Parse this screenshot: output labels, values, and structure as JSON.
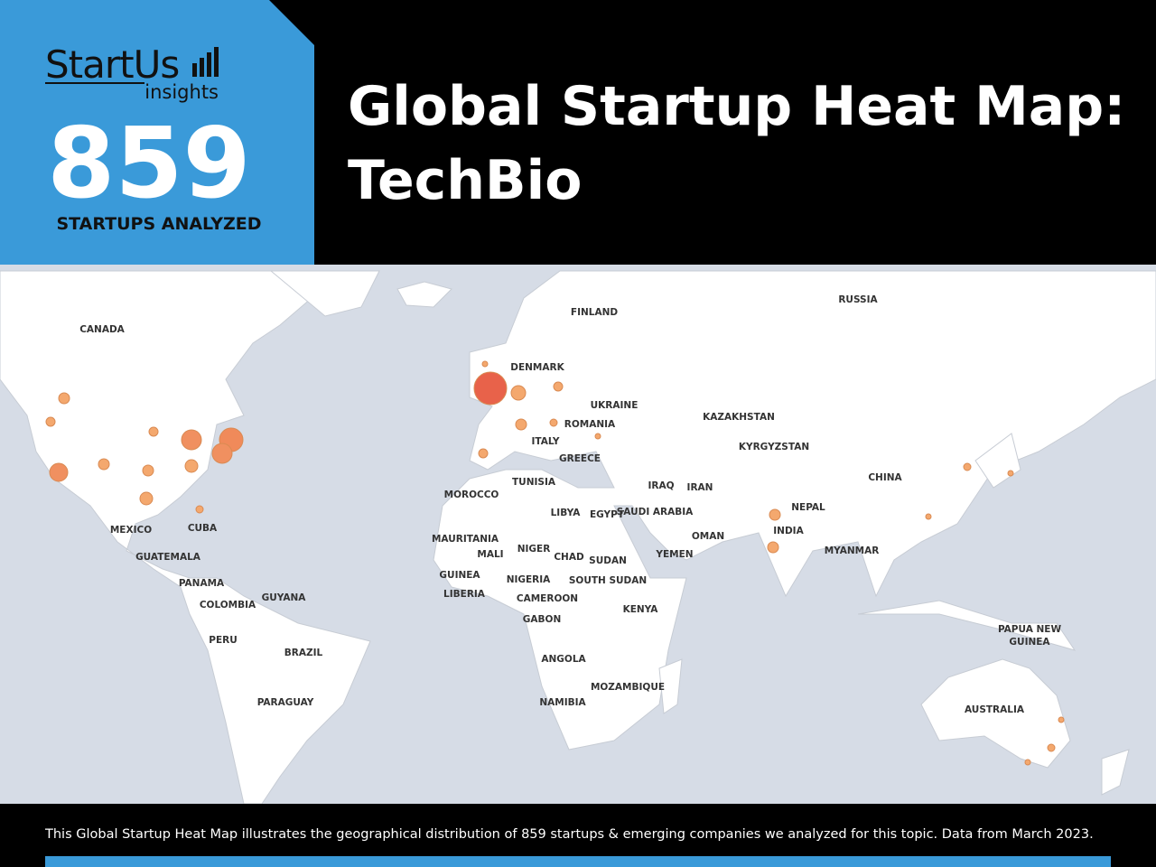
{
  "header": {
    "brand": "StartUs",
    "brand_sub": "insights",
    "count": "859",
    "count_label": "STARTUPS ANALYZED",
    "title_line1": "Global Startup Heat Map:",
    "title_line2": "TechBio"
  },
  "map": {
    "labels": [
      "CANADA",
      "FINLAND",
      "RUSSIA",
      "DENMARK",
      "UKRAINE",
      "ROMANIA",
      "KAZAKHSTAN",
      "ITALY",
      "KYRGYZSTAN",
      "GREECE",
      "CHINA",
      "TUNISIA",
      "IRAQ",
      "IRAN",
      "MOROCCO",
      "LIBYA",
      "EGYPT",
      "SAUDI ARABIA",
      "NEPAL",
      "INDIA",
      "OMAN",
      "MEXICO",
      "CUBA",
      "MAURITANIA",
      "MALI",
      "NIGER",
      "CHAD",
      "SUDAN",
      "YEMEN",
      "MYANMAR",
      "GUATEMALA",
      "GUINEA",
      "NIGERIA",
      "SOUTH SUDAN",
      "LIBERIA",
      "PANAMA",
      "COLOMBIA",
      "GUYANA",
      "CAMEROON",
      "KENYA",
      "GABON",
      "PERU",
      "BRAZIL",
      "PAPUA NEW GUINEA",
      "ANGOLA",
      "MOZAMBIQUE",
      "PARAGUAY",
      "NAMIBIA",
      "AUSTRALIA"
    ]
  },
  "footer": {
    "text": "This Global Startup Heat Map illustrates the geographical distribution of 859 startups & emerging companies we analyzed for this topic. Data from March 2023."
  }
}
